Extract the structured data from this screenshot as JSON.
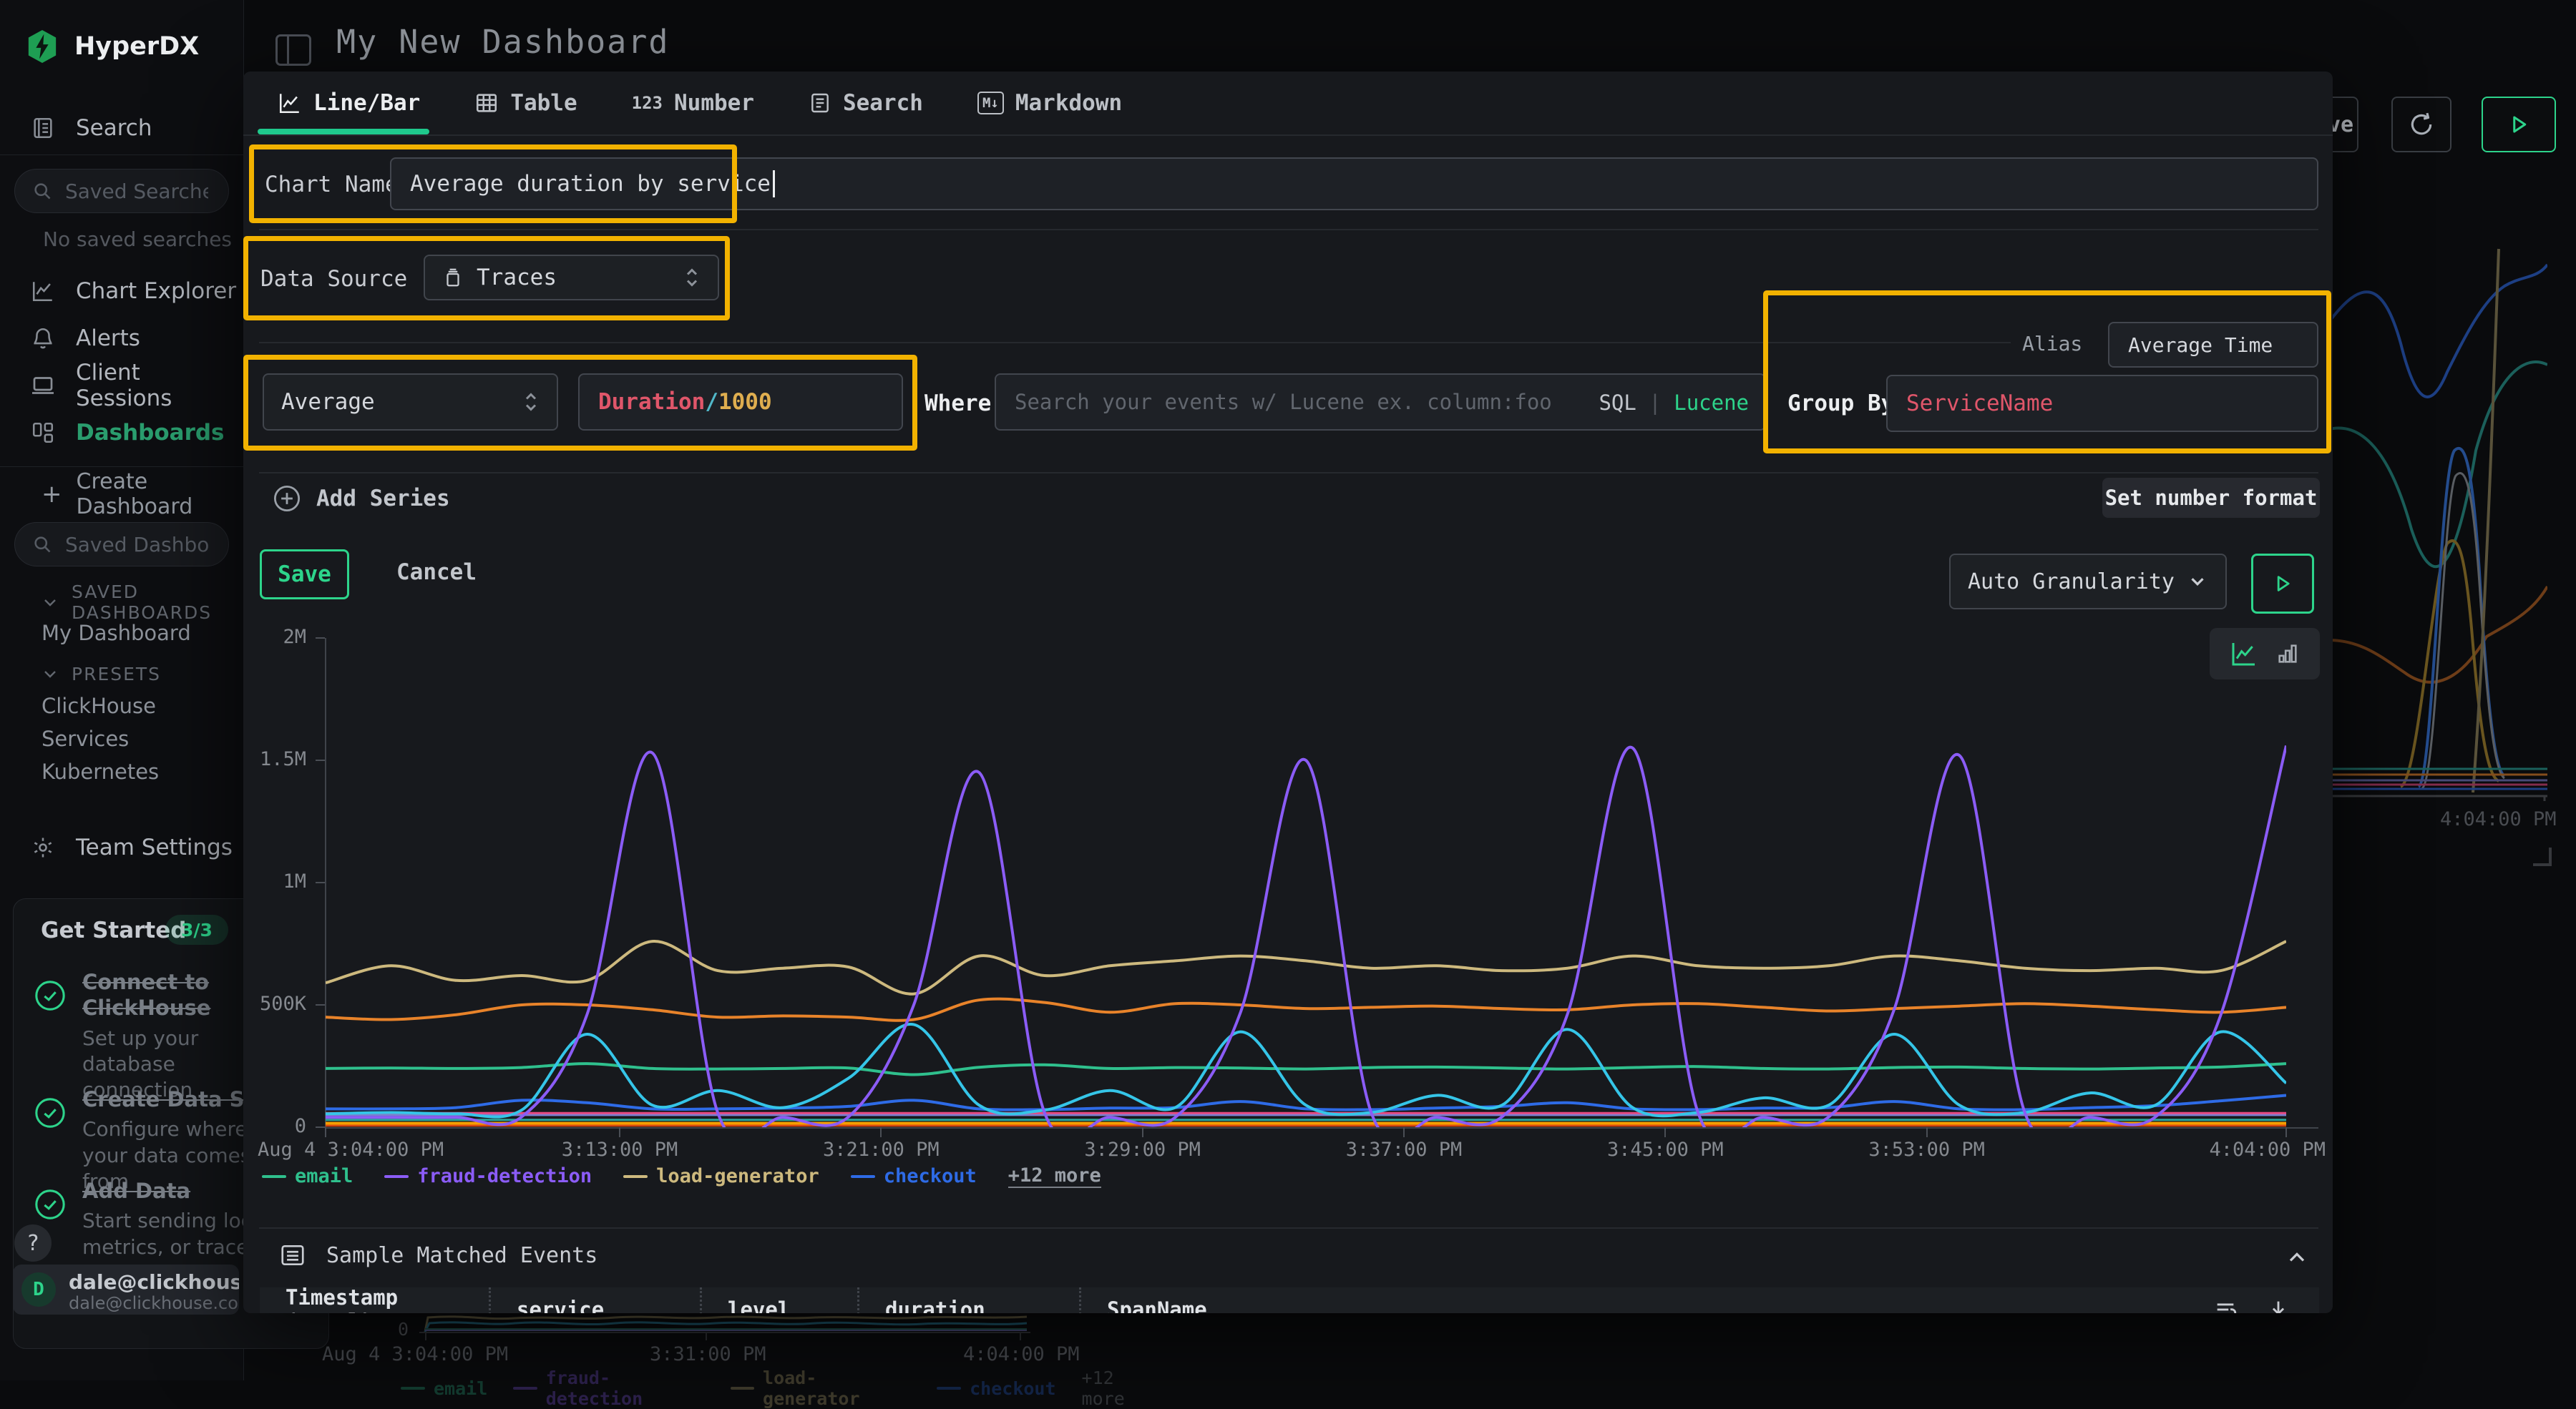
{
  "topbar": {
    "title": "My New Dashboard",
    "save_button_visible_text": "ve"
  },
  "sidebar": {
    "logo_text": "HyperDX",
    "search_nav_label": "Search",
    "saved_searches_placeholder": "Saved Searches",
    "no_saved_searches_text": "No saved searches",
    "nav": [
      {
        "label": "Chart Explorer"
      },
      {
        "label": "Alerts"
      },
      {
        "label": "Client Sessions"
      },
      {
        "label": "Dashboards"
      }
    ],
    "create_dashboard_label": "Create Dashboard",
    "saved_dashboards_placeholder": "Saved Dashboards",
    "section_saved_dashboards_title": "SAVED DASHBOARDS",
    "saved_dashboard_items": [
      {
        "label": "My Dashboard"
      }
    ],
    "section_presets_title": "PRESETS",
    "preset_items": [
      {
        "label": "ClickHouse"
      },
      {
        "label": "Services"
      },
      {
        "label": "Kubernetes"
      }
    ],
    "team_settings_label": "Team Settings",
    "get_started": {
      "title": "Get Started",
      "badge": "3/3",
      "items": [
        {
          "title": "Connect to ClickHouse",
          "description": "Set up your database connection"
        },
        {
          "title": "Create Data Source",
          "description": "Configure where your data comes from"
        },
        {
          "title": "Add Data",
          "description": "Start sending logs, metrics, or traces"
        }
      ]
    },
    "help_button_label": "?",
    "user": {
      "avatar_initial": "D",
      "name": "dale@clickhouse.c",
      "subtitle": "dale@clickhouse.com's"
    }
  },
  "modal": {
    "tabs": [
      {
        "label": "Line/Bar"
      },
      {
        "label": "Table"
      },
      {
        "label": "Number",
        "icon_text": "123"
      },
      {
        "label": "Search"
      },
      {
        "label": "Markdown",
        "icon_text": "M↓"
      }
    ],
    "chart_name": {
      "label": "Chart Name",
      "value": "Average duration by service"
    },
    "data_source": {
      "label": "Data Source",
      "value": "Traces"
    },
    "series_editor": {
      "aggregation_value": "Average",
      "field_tokens": {
        "field": "Duration",
        "operator": "/",
        "divisor": "1000"
      },
      "where_label": "Where",
      "where_placeholder": "Search your events w/ Lucene ex. column:foo",
      "language_sql": "SQL",
      "language_divider": "|",
      "language_lucene": "Lucene",
      "alias_label": "Alias",
      "alias_value": "Average Time",
      "group_by_label": "Group By",
      "group_by_value": "ServiceName"
    },
    "add_series_label": "Add Series",
    "set_number_format_label": "Set number format",
    "save_label": "Save",
    "cancel_label": "Cancel",
    "granularity_value": "Auto Granularity",
    "sample_events": {
      "title": "Sample Matched Events",
      "columns": [
        {
          "label": "Timestamp (Local)"
        },
        {
          "label": "service"
        },
        {
          "label": "level"
        },
        {
          "label": "duration"
        },
        {
          "label": "SpanName"
        }
      ]
    }
  },
  "chart_data": {
    "type": "line",
    "title": "Average duration by service",
    "xlabel": "",
    "ylabel": "",
    "x_range_minutes": [
      0,
      60
    ],
    "x_step_minutes": 2,
    "x_start_label": "Aug 4 3:04:00 PM",
    "x_end_label": "4:04:00 PM",
    "ylim_k": [
      0,
      2000
    ],
    "grid": false,
    "legend_position": "bottom",
    "x_ticks": [
      {
        "label": "Aug 4 3:04:00 PM",
        "minute": 0,
        "align": "left"
      },
      {
        "label": "3:13:00 PM",
        "minute": 9,
        "align": "center"
      },
      {
        "label": "3:21:00 PM",
        "minute": 17,
        "align": "center"
      },
      {
        "label": "3:29:00 PM",
        "minute": 25,
        "align": "center"
      },
      {
        "label": "3:37:00 PM",
        "minute": 33,
        "align": "center"
      },
      {
        "label": "3:45:00 PM",
        "minute": 41,
        "align": "center"
      },
      {
        "label": "3:53:00 PM",
        "minute": 49,
        "align": "center"
      },
      {
        "label": "4:04:00 PM",
        "minute": 60,
        "align": "right"
      }
    ],
    "y_ticks": [
      {
        "label": "0",
        "value_k": 0
      },
      {
        "label": "500K",
        "value_k": 500
      },
      {
        "label": "1M",
        "value_k": 1000
      },
      {
        "label": "1.5M",
        "value_k": 1500
      },
      {
        "label": "2M",
        "value_k": 2000
      }
    ],
    "legend": {
      "entries": [
        {
          "name": "email",
          "color": "#2fc08d"
        },
        {
          "name": "fraud-detection",
          "color": "#8b5cf6"
        },
        {
          "name": "load-generator",
          "color": "#cdb97e"
        },
        {
          "name": "checkout",
          "color": "#2e6be6"
        }
      ],
      "more_label": "+12 more"
    },
    "series": [
      {
        "name": "",
        "color": "#d9480f",
        "constant_k": 8,
        "width": 4
      },
      {
        "name": "",
        "color": "#f59f00",
        "constant_k": 16,
        "width": 4
      },
      {
        "name": "",
        "color": "#2aa79b",
        "constant_k": 30,
        "width": 3
      },
      {
        "name": "",
        "color": "#7a7fd0",
        "constant_k": 50,
        "width": 3
      },
      {
        "name": "",
        "color": "#e64980",
        "constant_k": 58,
        "width": 3
      },
      {
        "name": "",
        "color": "#e8832a",
        "width": 4,
        "values_k": [
          450,
          440,
          460,
          500,
          500,
          480,
          450,
          455,
          450,
          440,
          520,
          510,
          470,
          505,
          500,
          485,
          490,
          495,
          485,
          480,
          500,
          505,
          490,
          475,
          485,
          495,
          505,
          495,
          480,
          470,
          490
        ]
      },
      {
        "name": "load-generator",
        "color": "#cdb97e",
        "width": 4,
        "values_k": [
          590,
          660,
          600,
          620,
          600,
          760,
          640,
          650,
          655,
          545,
          700,
          620,
          660,
          680,
          700,
          680,
          650,
          660,
          640,
          650,
          700,
          660,
          650,
          660,
          700,
          680,
          650,
          640,
          650,
          640,
          760
        ]
      },
      {
        "name": "email",
        "color": "#2fc08d",
        "width": 4,
        "values_k": [
          240,
          242,
          240,
          244,
          260,
          240,
          238,
          240,
          242,
          215,
          245,
          255,
          240,
          244,
          242,
          238,
          244,
          246,
          242,
          238,
          244,
          248,
          240,
          238,
          244,
          246,
          240,
          238,
          242,
          246,
          260
        ]
      },
      {
        "name": "checkout",
        "color": "#2e6be6",
        "width": 4,
        "values_k": [
          75,
          75,
          80,
          110,
          100,
          75,
          75,
          78,
          85,
          110,
          75,
          72,
          78,
          80,
          105,
          75,
          72,
          78,
          85,
          100,
          75,
          72,
          78,
          80,
          105,
          75,
          72,
          80,
          88,
          108,
          130
        ]
      },
      {
        "name": "",
        "color": "#35c5e8",
        "width": 4,
        "values_k": [
          55,
          60,
          55,
          70,
          380,
          90,
          150,
          80,
          200,
          420,
          90,
          70,
          150,
          80,
          390,
          90,
          60,
          130,
          90,
          400,
          80,
          60,
          120,
          90,
          380,
          90,
          60,
          140,
          90,
          390,
          180
        ]
      },
      {
        "name": "fraud-detection",
        "color": "#8b5cf6",
        "width": 4,
        "values_k": [
          40,
          40,
          40,
          42,
          460,
          1530,
          60,
          40,
          42,
          500,
          1450,
          60,
          40,
          40,
          470,
          1500,
          60,
          40,
          42,
          460,
          1550,
          60,
          40,
          42,
          480,
          1520,
          60,
          40,
          42,
          460,
          1560
        ]
      }
    ]
  },
  "background": {
    "bottom_chart": {
      "y_zero_label": "0",
      "x_tick_labels": [
        "Aug 4 3:04:00 PM",
        "3:31:00 PM",
        "4:04:00 PM"
      ]
    },
    "right_chart": {
      "x_tick_label": "4:04:00 PM"
    }
  },
  "colors": {
    "accent_green": "#2dd48b",
    "highlight_yellow": "#f2b200",
    "code_red": "#e0566a",
    "code_cyan": "#51b8c9",
    "code_amber": "#dfae4f"
  }
}
